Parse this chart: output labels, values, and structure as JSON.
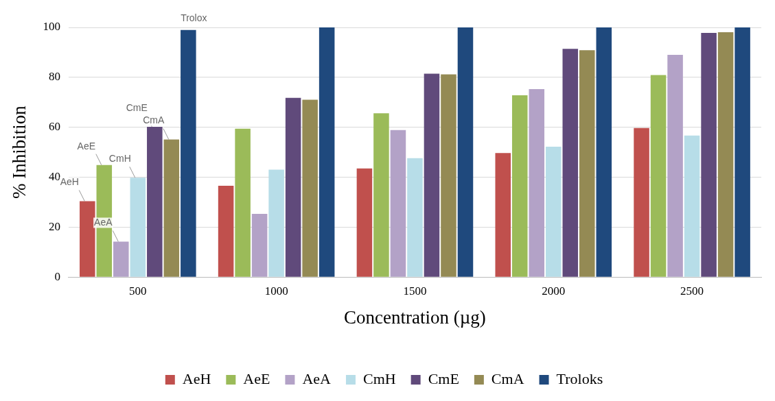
{
  "chart_data": {
    "type": "bar",
    "xlabel": "Concentration (µg)",
    "ylabel": "% Inhibition",
    "categories": [
      "500",
      "1000",
      "1500",
      "2000",
      "2500"
    ],
    "series": [
      {
        "name": "AeH",
        "color": "#c0504d",
        "values": [
          30.4,
          36.6,
          43.5,
          49.7,
          59.7
        ]
      },
      {
        "name": "AeE",
        "color": "#9bbb59",
        "values": [
          44.9,
          59.4,
          65.6,
          72.8,
          80.9
        ]
      },
      {
        "name": "AeA",
        "color": "#b3a2c7",
        "values": [
          14.2,
          25.3,
          58.9,
          75.3,
          89
        ]
      },
      {
        "name": "CmH",
        "color": "#b7dde8",
        "values": [
          39.8,
          43,
          47.6,
          52.2,
          56.7
        ]
      },
      {
        "name": "CmE",
        "color": "#604a7b",
        "values": [
          60.2,
          71.8,
          81.5,
          91.4,
          97.8
        ]
      },
      {
        "name": "CmA",
        "color": "#948a54",
        "values": [
          55.1,
          71,
          81.2,
          90.9,
          98.1
        ]
      },
      {
        "name": "Troloks",
        "color": "#1f497d",
        "values": [
          99,
          100,
          100,
          100,
          100
        ]
      }
    ],
    "ylim": [
      0,
      100
    ],
    "yticks": [
      0,
      20,
      40,
      60,
      80,
      100
    ],
    "grid": "y",
    "legend": "bottom",
    "annotations": [
      "AeH",
      "AeE",
      "AeA",
      "CmH",
      "CmE",
      "CmA",
      "Trolox"
    ]
  }
}
